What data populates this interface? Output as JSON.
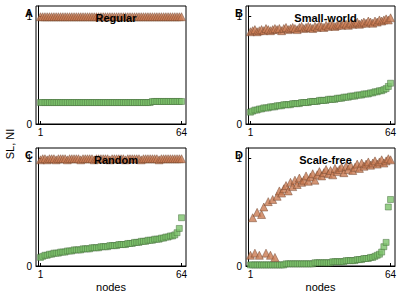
{
  "chart_data": [
    {
      "type": "scatter",
      "title": "Regular",
      "annotations": [
        "A"
      ],
      "ylabel": "SL, NI",
      "x": [
        1,
        2,
        3,
        4,
        5,
        6,
        7,
        8,
        9,
        10,
        11,
        12,
        13,
        14,
        15,
        16,
        17,
        18,
        19,
        20,
        21,
        22,
        23,
        24,
        25,
        26,
        27,
        28,
        29,
        30,
        31,
        32,
        33,
        34,
        35,
        36,
        37,
        38,
        39,
        40,
        41,
        42,
        43,
        44,
        45,
        46,
        47,
        48,
        49,
        50,
        51,
        52,
        53,
        54,
        55,
        56,
        57,
        58,
        59,
        60,
        61,
        62,
        63,
        64
      ],
      "xlim": [
        -1,
        66
      ],
      "xticks": [
        1,
        64
      ],
      "ylim": [
        0,
        1.1
      ],
      "yticks": [
        0,
        1
      ],
      "grid": false,
      "series": [
        {
          "color": "#c97b52",
          "marker": "triangle",
          "values": [
            1,
            1,
            1,
            1,
            1,
            1,
            1,
            1,
            1,
            1,
            1,
            1,
            1,
            1,
            1,
            1,
            1,
            1,
            1,
            1,
            1,
            1,
            1,
            1,
            1,
            1,
            1,
            1,
            1,
            1,
            1,
            1,
            1,
            1,
            1,
            1,
            1,
            1,
            1,
            1,
            1,
            1,
            1,
            1,
            1,
            1,
            1,
            1,
            1,
            1,
            1,
            1,
            1,
            1,
            1,
            1,
            1,
            1,
            1,
            1,
            1,
            1,
            1,
            1
          ]
        },
        {
          "color": "#7cc26a",
          "marker": "square",
          "values": [
            0.2,
            0.2,
            0.2,
            0.2,
            0.2,
            0.2,
            0.2,
            0.2,
            0.2,
            0.2,
            0.2,
            0.2,
            0.2,
            0.2,
            0.2,
            0.2,
            0.2,
            0.2,
            0.2,
            0.2,
            0.2,
            0.2,
            0.2,
            0.2,
            0.2,
            0.2,
            0.2,
            0.2,
            0.2,
            0.2,
            0.2,
            0.2,
            0.2,
            0.2,
            0.2,
            0.2,
            0.2,
            0.2,
            0.2,
            0.2,
            0.2,
            0.2,
            0.2,
            0.2,
            0.2,
            0.2,
            0.2,
            0.2,
            0.2,
            0.2,
            0.21,
            0.21,
            0.21,
            0.21,
            0.21,
            0.21,
            0.21,
            0.21,
            0.21,
            0.21,
            0.21,
            0.21,
            0.21,
            0.21
          ]
        }
      ]
    },
    {
      "type": "scatter",
      "title": "Small-world",
      "annotations": [
        "B"
      ],
      "x": [
        1,
        2,
        3,
        4,
        5,
        6,
        7,
        8,
        9,
        10,
        11,
        12,
        13,
        14,
        15,
        16,
        17,
        18,
        19,
        20,
        21,
        22,
        23,
        24,
        25,
        26,
        27,
        28,
        29,
        30,
        31,
        32,
        33,
        34,
        35,
        36,
        37,
        38,
        39,
        40,
        41,
        42,
        43,
        44,
        45,
        46,
        47,
        48,
        49,
        50,
        51,
        52,
        53,
        54,
        55,
        56,
        57,
        58,
        59,
        60,
        61,
        62,
        63,
        64
      ],
      "xlim": [
        -1,
        66
      ],
      "xticks": [
        1,
        64
      ],
      "ylim": [
        0,
        1.1
      ],
      "yticks": [
        0,
        1
      ],
      "grid": false,
      "series": [
        {
          "color": "#c97b52",
          "marker": "triangle",
          "values": [
            0.86,
            0.87,
            0.88,
            0.86,
            0.87,
            0.88,
            0.87,
            0.89,
            0.88,
            0.87,
            0.88,
            0.89,
            0.88,
            0.89,
            0.87,
            0.89,
            0.9,
            0.88,
            0.89,
            0.9,
            0.89,
            0.88,
            0.9,
            0.91,
            0.89,
            0.9,
            0.91,
            0.9,
            0.89,
            0.91,
            0.9,
            0.92,
            0.91,
            0.9,
            0.92,
            0.91,
            0.93,
            0.92,
            0.91,
            0.92,
            0.93,
            0.92,
            0.94,
            0.93,
            0.92,
            0.94,
            0.93,
            0.94,
            0.95,
            0.93,
            0.94,
            0.95,
            0.94,
            0.96,
            0.95,
            0.94,
            0.96,
            0.95,
            0.97,
            0.96,
            0.97,
            0.98,
            0.97,
            0.99
          ]
        },
        {
          "color": "#7cc26a",
          "marker": "square",
          "values": [
            0.11,
            0.12,
            0.13,
            0.13,
            0.14,
            0.14,
            0.15,
            0.15,
            0.15,
            0.16,
            0.16,
            0.16,
            0.17,
            0.17,
            0.17,
            0.18,
            0.18,
            0.18,
            0.18,
            0.19,
            0.19,
            0.19,
            0.19,
            0.2,
            0.2,
            0.2,
            0.2,
            0.21,
            0.21,
            0.21,
            0.21,
            0.22,
            0.22,
            0.22,
            0.22,
            0.23,
            0.23,
            0.23,
            0.23,
            0.24,
            0.24,
            0.24,
            0.25,
            0.25,
            0.25,
            0.26,
            0.26,
            0.26,
            0.27,
            0.27,
            0.27,
            0.28,
            0.28,
            0.28,
            0.29,
            0.29,
            0.3,
            0.3,
            0.31,
            0.31,
            0.32,
            0.33,
            0.35,
            0.38
          ]
        }
      ]
    },
    {
      "type": "scatter",
      "title": "Random",
      "annotations": [
        "C"
      ],
      "xlabel": "nodes",
      "x": [
        1,
        2,
        3,
        4,
        5,
        6,
        7,
        8,
        9,
        10,
        11,
        12,
        13,
        14,
        15,
        16,
        17,
        18,
        19,
        20,
        21,
        22,
        23,
        24,
        25,
        26,
        27,
        28,
        29,
        30,
        31,
        32,
        33,
        34,
        35,
        36,
        37,
        38,
        39,
        40,
        41,
        42,
        43,
        44,
        45,
        46,
        47,
        48,
        49,
        50,
        51,
        52,
        53,
        54,
        55,
        56,
        57,
        58,
        59,
        60,
        61,
        62,
        63,
        64
      ],
      "xlim": [
        -1,
        66
      ],
      "xticks": [
        1,
        64
      ],
      "ylim": [
        0,
        1.1
      ],
      "yticks": [
        0,
        1
      ],
      "grid": false,
      "series": [
        {
          "color": "#c97b52",
          "marker": "triangle",
          "values": [
            0.99,
            1,
            1,
            0.99,
            1,
            1,
            1,
            0.99,
            1,
            1,
            1,
            1,
            0.99,
            1,
            1,
            1,
            1,
            1,
            0.99,
            1,
            1,
            1,
            1,
            1,
            0.99,
            1,
            1,
            1,
            1,
            1,
            1,
            0.99,
            1,
            1,
            1,
            1,
            1,
            1,
            0.99,
            1,
            1,
            1,
            1,
            1,
            1,
            0.99,
            1,
            1,
            1,
            1,
            1,
            1,
            1,
            0.99,
            1,
            1,
            1,
            1,
            1,
            1,
            1,
            1,
            1,
            1
          ]
        },
        {
          "color": "#7cc26a",
          "marker": "square",
          "values": [
            0.08,
            0.09,
            0.1,
            0.1,
            0.11,
            0.11,
            0.12,
            0.12,
            0.12,
            0.13,
            0.13,
            0.13,
            0.14,
            0.14,
            0.14,
            0.15,
            0.15,
            0.15,
            0.15,
            0.16,
            0.16,
            0.16,
            0.16,
            0.17,
            0.17,
            0.17,
            0.17,
            0.18,
            0.18,
            0.18,
            0.18,
            0.19,
            0.19,
            0.19,
            0.19,
            0.2,
            0.2,
            0.2,
            0.2,
            0.21,
            0.21,
            0.21,
            0.22,
            0.22,
            0.22,
            0.23,
            0.23,
            0.23,
            0.24,
            0.24,
            0.24,
            0.25,
            0.25,
            0.25,
            0.26,
            0.26,
            0.27,
            0.27,
            0.28,
            0.28,
            0.29,
            0.31,
            0.35,
            0.45
          ]
        }
      ]
    },
    {
      "type": "scatter",
      "title": "Scale-free",
      "annotations": [
        "D"
      ],
      "xlabel": "nodes",
      "x": [
        1,
        2,
        3,
        4,
        5,
        6,
        7,
        8,
        9,
        10,
        11,
        12,
        13,
        14,
        15,
        16,
        17,
        18,
        19,
        20,
        21,
        22,
        23,
        24,
        25,
        26,
        27,
        28,
        29,
        30,
        31,
        32,
        33,
        34,
        35,
        36,
        37,
        38,
        39,
        40,
        41,
        42,
        43,
        44,
        45,
        46,
        47,
        48,
        49,
        50,
        51,
        52,
        53,
        54,
        55,
        56,
        57,
        58,
        59,
        60,
        61,
        62,
        63,
        64
      ],
      "xlim": [
        -1,
        66
      ],
      "xticks": [
        1,
        64
      ],
      "ylim": [
        0,
        1.1
      ],
      "yticks": [
        0,
        1
      ],
      "grid": false,
      "series": [
        {
          "color": "#c97b52",
          "marker": "triangle",
          "values": [
            0.1,
            0.45,
            0.12,
            0.5,
            0.1,
            0.48,
            0.55,
            0.12,
            0.6,
            0.1,
            0.62,
            0.08,
            0.65,
            0.7,
            0.68,
            0.72,
            0.75,
            0.7,
            0.78,
            0.74,
            0.8,
            0.76,
            0.82,
            0.78,
            0.8,
            0.84,
            0.79,
            0.83,
            0.86,
            0.8,
            0.85,
            0.88,
            0.84,
            0.87,
            0.9,
            0.86,
            0.89,
            0.85,
            0.91,
            0.88,
            0.9,
            0.92,
            0.87,
            0.93,
            0.9,
            0.94,
            0.89,
            0.92,
            0.95,
            0.91,
            0.96,
            0.93,
            0.95,
            0.97,
            0.94,
            0.96,
            0.98,
            0.95,
            0.97,
            0.99,
            0.96,
            0.98,
            1,
            0.99
          ]
        },
        {
          "color": "#7cc26a",
          "marker": "square",
          "values": [
            0.01,
            0.01,
            0.01,
            0.01,
            0.01,
            0.01,
            0.01,
            0.01,
            0.01,
            0.01,
            0.01,
            0.01,
            0.01,
            0.01,
            0.01,
            0.01,
            0.02,
            0.02,
            0.02,
            0.02,
            0.02,
            0.02,
            0.02,
            0.02,
            0.02,
            0.02,
            0.02,
            0.02,
            0.02,
            0.03,
            0.03,
            0.03,
            0.03,
            0.03,
            0.03,
            0.03,
            0.03,
            0.04,
            0.04,
            0.04,
            0.04,
            0.04,
            0.04,
            0.05,
            0.05,
            0.05,
            0.05,
            0.05,
            0.06,
            0.06,
            0.06,
            0.07,
            0.07,
            0.07,
            0.08,
            0.08,
            0.09,
            0.1,
            0.11,
            0.13,
            0.18,
            0.22,
            0.55,
            0.62
          ]
        }
      ]
    }
  ]
}
